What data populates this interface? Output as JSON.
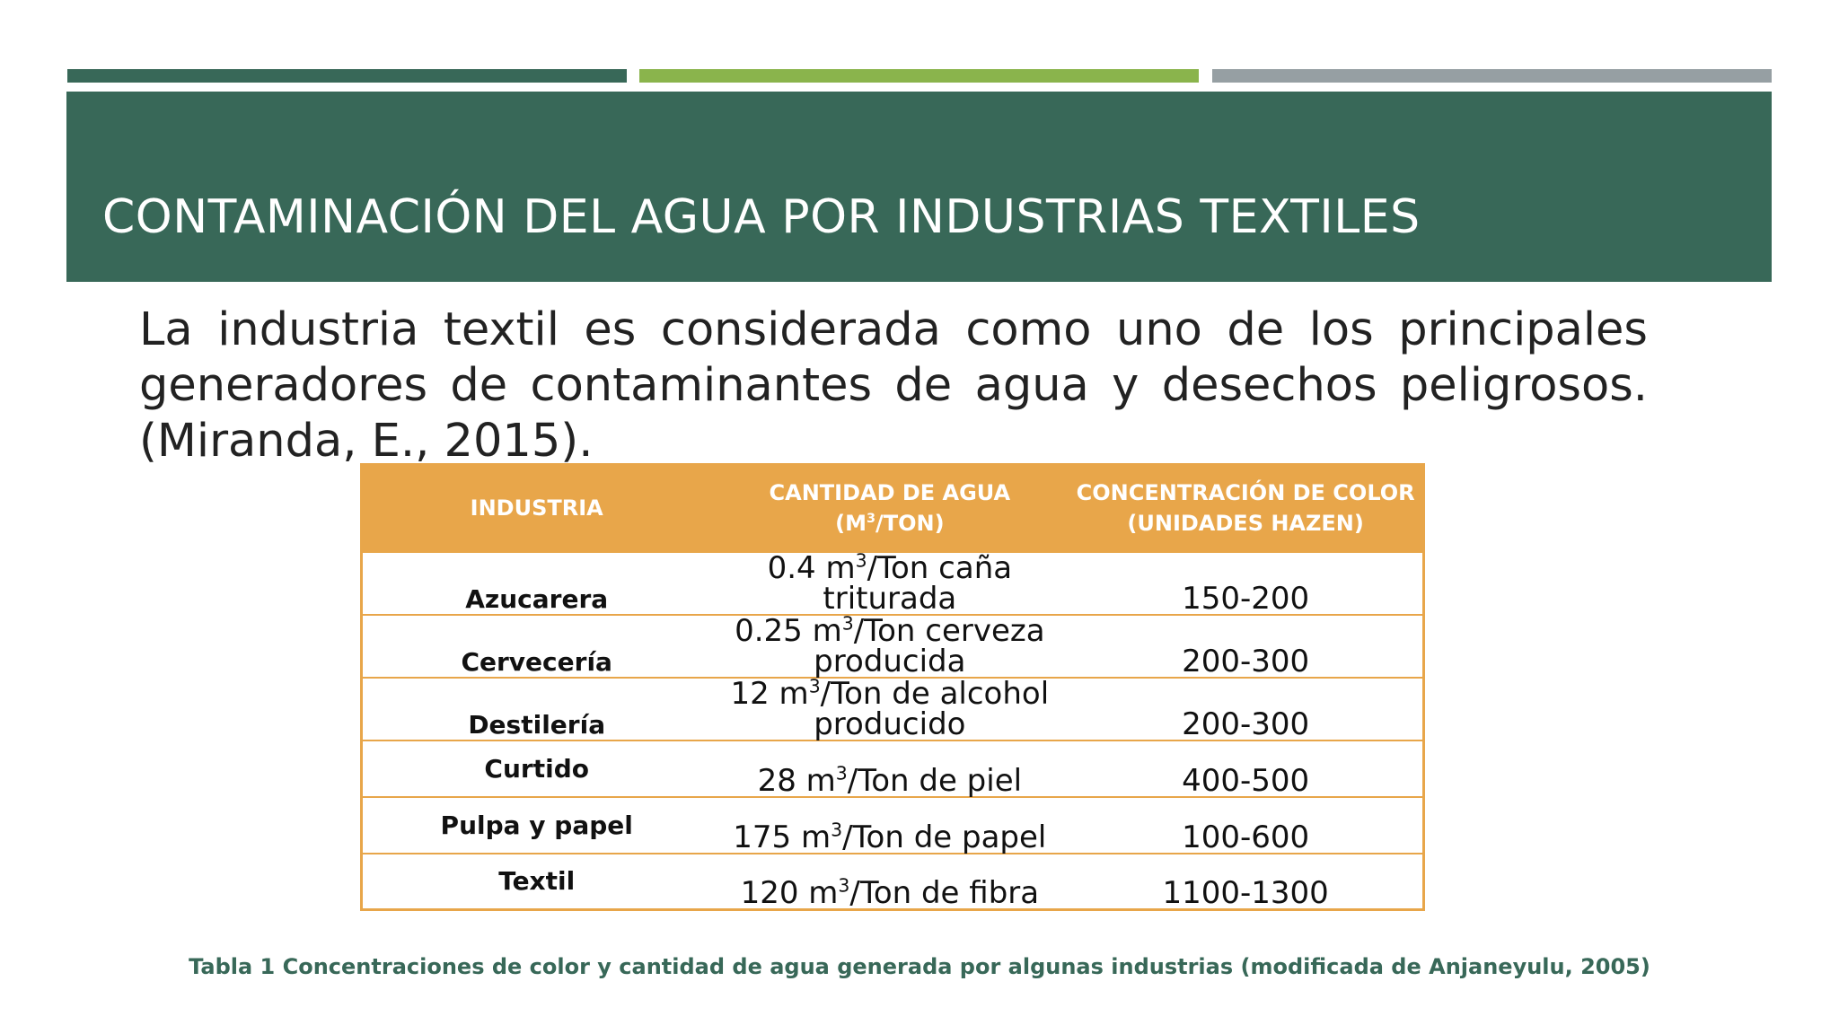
{
  "header": {
    "bar_colors": [
      "#386858",
      "#8ab44c",
      "#969fa3"
    ],
    "title": "CONTAMINACIÓN DEL AGUA POR INDUSTRIAS TEXTILES"
  },
  "body": {
    "paragraph": "La industria textil es considerada como uno de los principales generadores de contaminantes de agua y desechos peligrosos. (Miranda, E., 2015)."
  },
  "table": {
    "header_color": "#e8a64a",
    "columns": [
      {
        "line1": "INDUSTRIA",
        "line2": ""
      },
      {
        "line1": "CANTIDAD DE AGUA",
        "line2_pre": "(M",
        "line2_sup": "3",
        "line2_post": "/TON)"
      },
      {
        "line1": "CONCENTRACIÓN DE COLOR",
        "line2": "(UNIDADES HAZEN)"
      }
    ],
    "rows": [
      {
        "industria": "Azucarera",
        "agua_pre": "0.4 m",
        "agua_sup": "3",
        "agua_post": "/Ton caña",
        "agua_line2": "triturada",
        "concentracion": "150-200"
      },
      {
        "industria": "Cervecería",
        "agua_pre": "0.25 m",
        "agua_sup": "3",
        "agua_post": "/Ton cerveza",
        "agua_line2": "producida",
        "concentracion": "200-300"
      },
      {
        "industria": "Destilería",
        "agua_pre": "12 m",
        "agua_sup": "3",
        "agua_post": "/Ton de alcohol",
        "agua_line2": "producido",
        "concentracion": "200-300"
      },
      {
        "industria": "Curtido",
        "agua_pre": "28 m",
        "agua_sup": "3",
        "agua_post": "/Ton de piel",
        "agua_line2": "",
        "concentracion": "400-500"
      },
      {
        "industria": "Pulpa y papel",
        "agua_pre": "175 m",
        "agua_sup": "3",
        "agua_post": "/Ton de papel",
        "agua_line2": "",
        "concentracion": "100-600"
      },
      {
        "industria": "Textil",
        "agua_pre": "120 m",
        "agua_sup": "3",
        "agua_post": "/Ton de fibra",
        "agua_line2": "",
        "concentracion": "1100-1300"
      }
    ]
  },
  "caption": "Tabla 1 Concentraciones de color y cantidad de agua generada por algunas industrias (modificada de Anjaneyulu, 2005)"
}
